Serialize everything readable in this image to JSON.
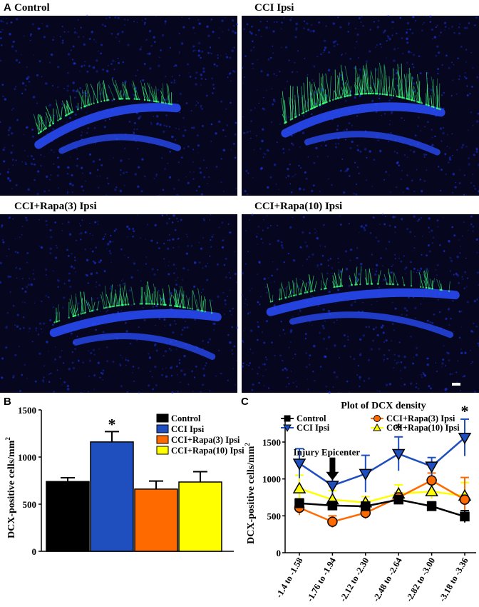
{
  "panel_letters": {
    "a": "A",
    "b": "B",
    "c": "C"
  },
  "micrographs": [
    {
      "label": "Control",
      "intensity": 0.55
    },
    {
      "label": "CCI Ipsi",
      "intensity": 1.0
    },
    {
      "label": "CCI+Rapa(3) Ipsi",
      "intensity": 0.6
    },
    {
      "label": "CCI+Rapa(10) Ipsi",
      "intensity": 0.45
    }
  ],
  "colors": {
    "nuclei": "#1f3cff",
    "dcx": "#3cff7a",
    "background": "#06061e"
  },
  "chart_data": [
    {
      "type": "bar",
      "ylabel": "DCX-positive cells/mm²",
      "ylim": [
        0,
        1500
      ],
      "yticks": [
        0,
        500,
        1000,
        1500
      ],
      "categories": [
        "Control",
        "CCI Ipsi",
        "CCI+Rapa(3) Ipsi",
        "CCI+Rapa(10) Ipsi"
      ],
      "values": [
        740,
        1160,
        660,
        735
      ],
      "errors": [
        40,
        110,
        85,
        110
      ],
      "colors": [
        "#000000",
        "#1f4fbf",
        "#ff6a00",
        "#ffff00"
      ],
      "significance": [
        "",
        "*",
        "",
        ""
      ],
      "legend": [
        "Control",
        "CCI Ipsi",
        "CCI+Rapa(3) Ipsi",
        "CCI+Rapa(10) Ipsi"
      ],
      "legend_position": "top-right"
    },
    {
      "type": "line",
      "title": "Plot of DCX density",
      "ylabel": "DCX-positive cells/mm²",
      "ylim": [
        0,
        1800
      ],
      "yticks": [
        0,
        500,
        1000,
        1500
      ],
      "categories": [
        "-1.4 to -1.58",
        "-1.76 to -1.94",
        "-2.12 to -2.30",
        "-2.48 to -2.64",
        "-2.82 to -3.00",
        "-3.18 to -3.36"
      ],
      "series": [
        {
          "name": "Control",
          "color": "#000000",
          "marker": "square",
          "values": [
            670,
            640,
            630,
            720,
            630,
            490
          ],
          "errors": [
            60,
            50,
            50,
            60,
            60,
            80
          ]
        },
        {
          "name": "CCI Ipsi",
          "color": "#1f4fbf",
          "marker": "triangle-down",
          "values": [
            1210,
            910,
            1070,
            1340,
            1170,
            1560
          ],
          "errors": [
            200,
            150,
            250,
            230,
            120,
            250
          ]
        },
        {
          "name": "CCI+Rapa(3) Ipsi",
          "color": "#ff6a00",
          "marker": "circle",
          "values": [
            610,
            420,
            540,
            750,
            980,
            720
          ],
          "errors": [
            100,
            80,
            80,
            60,
            100,
            300
          ]
        },
        {
          "name": "CCI+Rapa(10) Ipsi",
          "color": "#ffff00",
          "marker": "triangle-up",
          "values": [
            870,
            720,
            680,
            800,
            830,
            770
          ],
          "errors": [
            180,
            120,
            80,
            120,
            100,
            180
          ]
        }
      ],
      "significance": [
        "",
        "",
        "",
        "*",
        "",
        "*"
      ],
      "annotation": "Injury Epicenter",
      "legend_position": "top-left"
    }
  ]
}
